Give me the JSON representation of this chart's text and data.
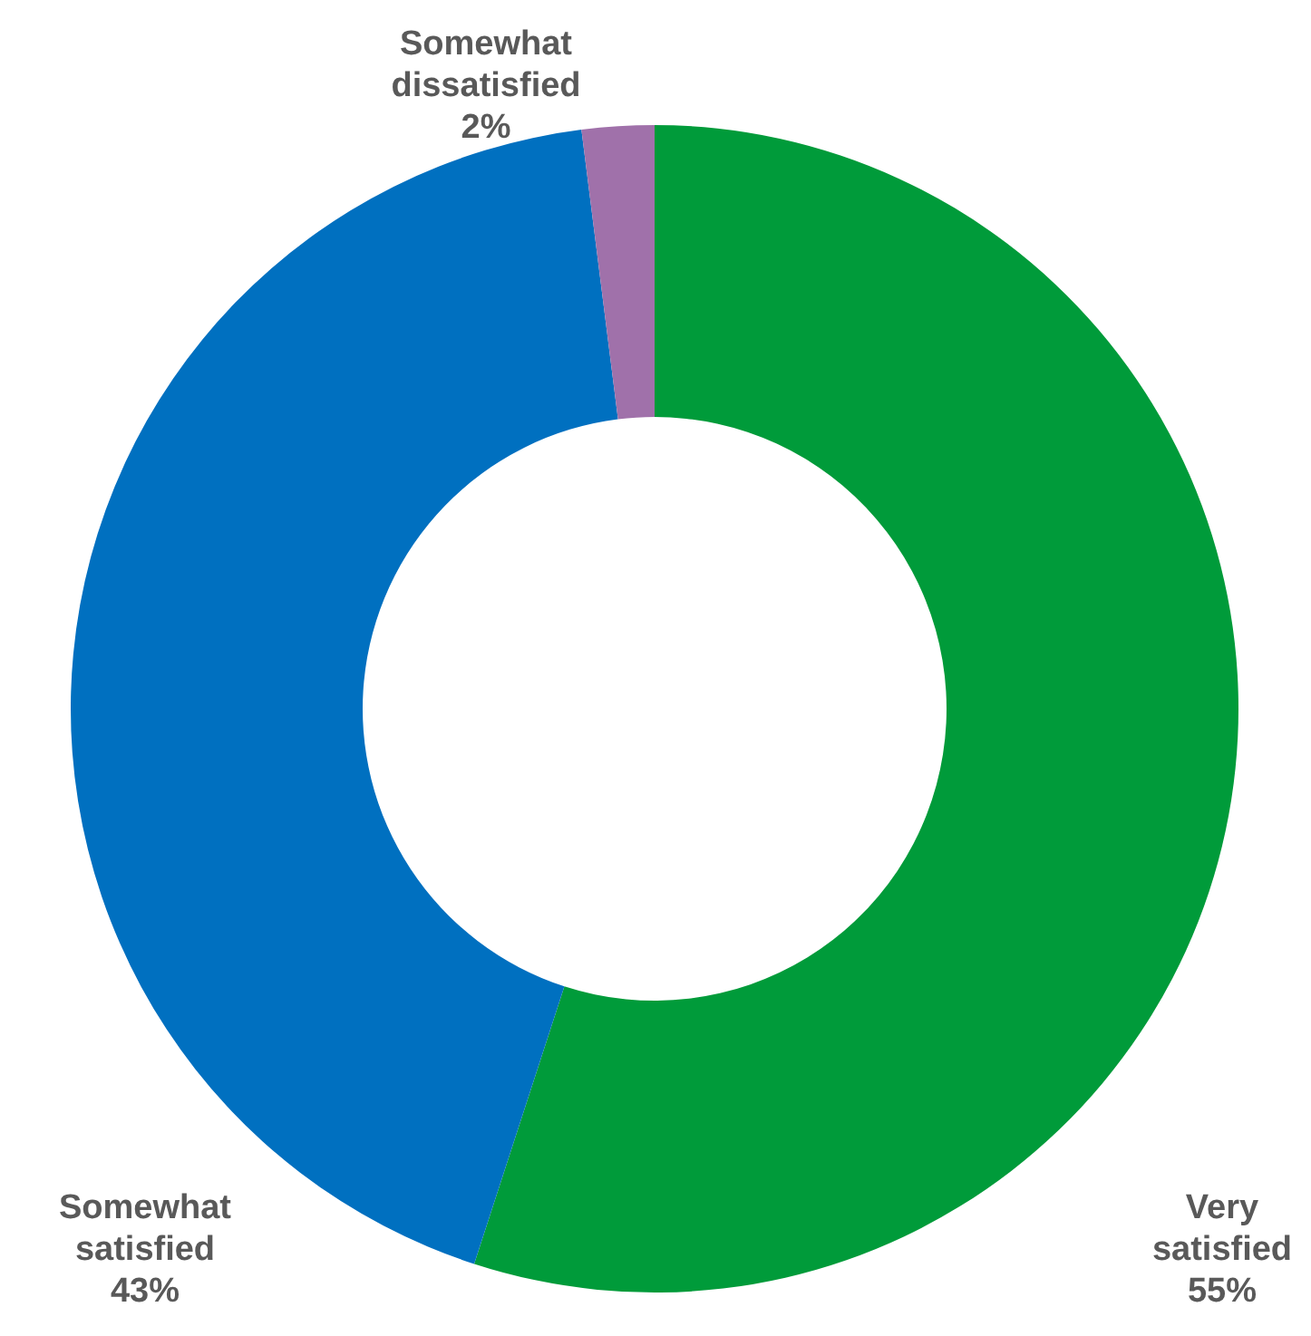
{
  "chart_data": {
    "type": "donut",
    "categories": [
      "Very satisfied",
      "Somewhat satisfied",
      "Somewhat dissatisfied"
    ],
    "values": [
      55,
      43,
      2
    ],
    "colors": [
      "#009b3a",
      "#0070c0",
      "#a071aa"
    ],
    "value_labels": [
      "55%",
      "43%",
      "2%"
    ]
  }
}
